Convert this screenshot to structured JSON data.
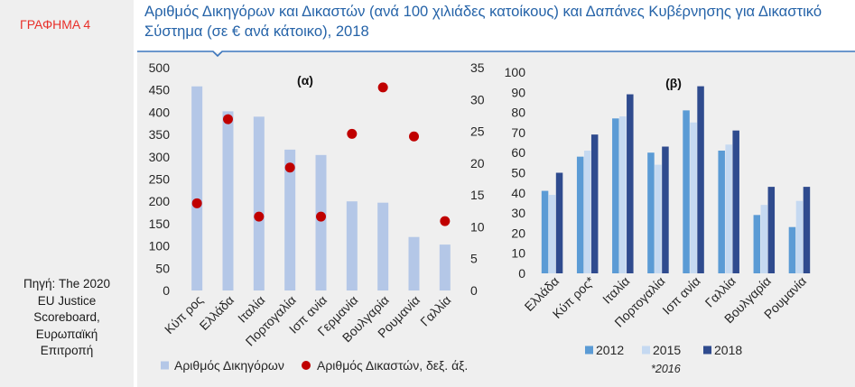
{
  "sidebar": {
    "figure_label": "ΓΡΑΦΗΜΑ 4",
    "source_lines": [
      "Πηγή: The 2020",
      "EU Justice",
      "Scoreboard,",
      "Ευρωπαϊκή",
      "Επιτροπή"
    ]
  },
  "header": {
    "title_lines": [
      "Αριθμός Δικηγόρων και Δικαστών (ανά 100 χιλιάδες κατοίκους) και Δαπάνες Κυβέρνησης για Δικαστικό",
      "Σύστημα (σε € ανά κάτοικο), 2018"
    ]
  },
  "colors": {
    "figure_label": "#e8302a",
    "title": "#2563a8",
    "rule": "#3a74bb",
    "panel_background": "#efefef"
  },
  "chart_data": [
    {
      "panel_label": "(α)",
      "type": "bar",
      "categories": [
        "Κύπ ρος",
        "Ελλάδα",
        "Ιταλία",
        "Πορτογαλία",
        "Ισπ ανία",
        "Γερμανία",
        "Βουλγαρία",
        "Ρουμανία",
        "Γαλλία"
      ],
      "series": [
        {
          "name": "Αριθμός Δικηγόρων",
          "type": "bar",
          "axis": "left",
          "color": "#b4c7e7",
          "values": [
            458,
            402,
            390,
            316,
            304,
            200,
            197,
            120,
            103
          ]
        },
        {
          "name": "Αριθμός Δικαστών, δεξ. άξ.",
          "type": "scatter",
          "axis": "right",
          "color": "#c00000",
          "values": [
            13.7,
            26.9,
            11.6,
            19.3,
            11.6,
            24.6,
            31.9,
            24.2,
            10.9
          ]
        }
      ],
      "ylim": [
        0,
        500
      ],
      "yticks": [
        0,
        50,
        100,
        150,
        200,
        250,
        300,
        350,
        400,
        450,
        500
      ],
      "y2lim": [
        0,
        35
      ],
      "y2ticks": [
        0,
        5,
        10,
        15,
        20,
        25,
        30,
        35
      ],
      "grid": false,
      "legend": "bottom"
    },
    {
      "panel_label": "(β)",
      "type": "bar",
      "categories": [
        "Ελλάδα",
        "Κύπ ρος*",
        "Ιταλία",
        "Πορτογαλία",
        "Ισπ ανία",
        "Γαλλία",
        "Βουλγαρία",
        "Ρουμανία"
      ],
      "series": [
        {
          "name": "2012",
          "type": "bar",
          "axis": "left",
          "color": "#5b9bd5",
          "values": [
            41,
            58,
            77,
            60,
            81,
            61,
            29,
            23
          ]
        },
        {
          "name": "2015",
          "type": "bar",
          "axis": "left",
          "color": "#c5d9f1",
          "values": [
            39,
            61,
            78,
            54,
            75,
            64,
            34,
            36
          ]
        },
        {
          "name": "2018",
          "type": "bar",
          "axis": "left",
          "color": "#2f4b8e",
          "values": [
            50,
            69,
            89,
            63,
            93,
            71,
            43,
            43
          ]
        }
      ],
      "ylim": [
        0,
        100
      ],
      "yticks": [
        0,
        10,
        20,
        30,
        40,
        50,
        60,
        70,
        80,
        90,
        100
      ],
      "note": "*2016",
      "grid": false,
      "legend": "bottom"
    }
  ]
}
